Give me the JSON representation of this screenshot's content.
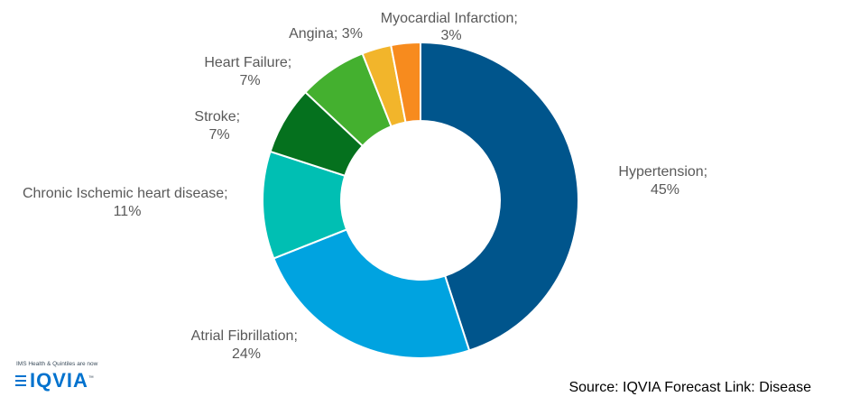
{
  "chart_data": {
    "type": "pie",
    "variant": "donut",
    "title": "",
    "slices": [
      {
        "name": "Hypertension",
        "pct_label": "45%",
        "value": 45,
        "color": "#00558c"
      },
      {
        "name": "Atrial Fibrillation",
        "pct_label": "24%",
        "value": 24,
        "color": "#00a3e0"
      },
      {
        "name": "Chronic Ischemic heart disease",
        "pct_label": "11%",
        "value": 11,
        "color": "#00bfb3"
      },
      {
        "name": "Stroke",
        "pct_label": "7%",
        "value": 7,
        "color": "#05711e"
      },
      {
        "name": "Heart Failure",
        "pct_label": "7%",
        "value": 7,
        "color": "#44b02f"
      },
      {
        "name": "Angina",
        "pct_label": "3%",
        "value": 3,
        "color": "#f2b52b"
      },
      {
        "name": "Myocardial Infarction",
        "pct_label": "3%",
        "value": 3,
        "color": "#f78b1e"
      }
    ]
  },
  "source": "Source: IQVIA Forecast Link: Disease",
  "logo": {
    "tagline": "IMS Health & Quintiles are now",
    "wordmark": "IQVIA",
    "trademark": "™"
  }
}
